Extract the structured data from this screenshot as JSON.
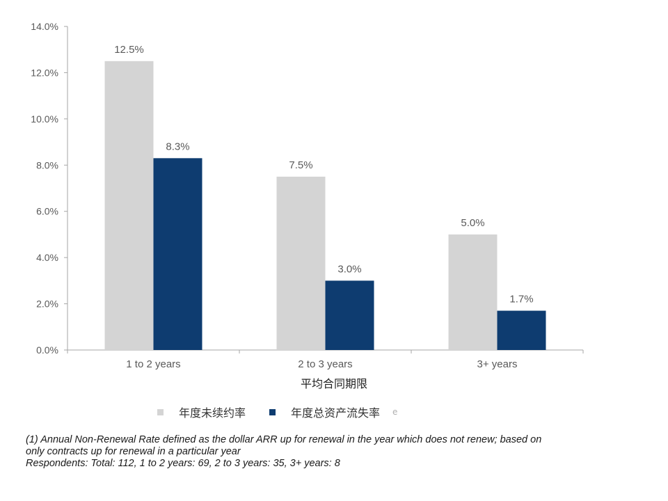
{
  "chart_data": {
    "type": "bar",
    "categories": [
      "1 to 2 years",
      "2 to 3 years",
      "3+ years"
    ],
    "series": [
      {
        "name": "年度未续约率",
        "values": [
          12.5,
          7.5,
          5.0
        ],
        "labels": [
          "12.5%",
          "7.5%",
          "5.0%"
        ],
        "color": "#d4d4d4"
      },
      {
        "name": "年度总资产流失率",
        "values": [
          8.3,
          3.0,
          1.7
        ],
        "labels": [
          "8.3%",
          "3.0%",
          "1.7%"
        ],
        "color": "#0e3c70"
      }
    ],
    "xlabel": "平均合同期限",
    "ylabel": "",
    "ylim": [
      0,
      14
    ],
    "yticks": [
      "0.0%",
      "2.0%",
      "4.0%",
      "6.0%",
      "8.0%",
      "10.0%",
      "12.0%",
      "14.0%"
    ],
    "grid": false,
    "legend_position": "bottom"
  },
  "legend_artifact": "e",
  "footnote": {
    "line1": "(1) Annual Non-Renewal Rate defined as the dollar ARR up for renewal in the year which does not renew; based on",
    "line2": "only contracts up for renewal in a particular year",
    "line3": "Respondents: Total: 112, 1 to 2 years: 69, 2 to 3 years: 35, 3+ years: 8"
  },
  "colors": {
    "axis": "#a6a6a6",
    "text": "#595959"
  }
}
